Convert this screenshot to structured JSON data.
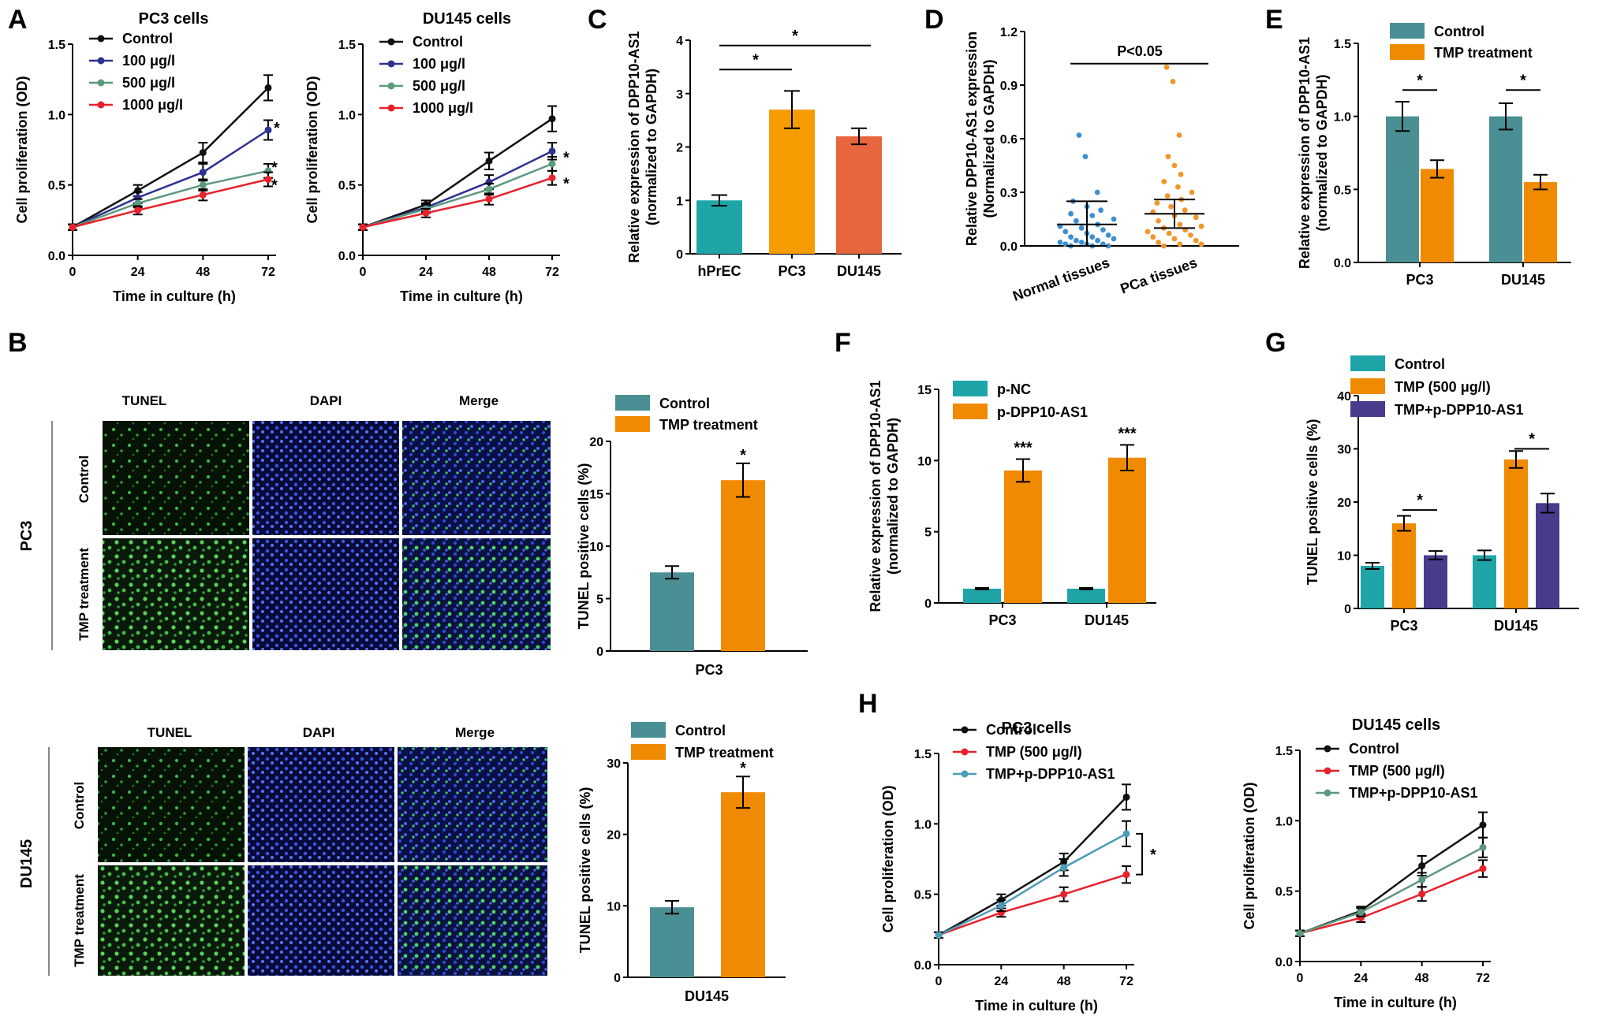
{
  "panel_letters": [
    "A",
    "B",
    "C",
    "D",
    "E",
    "F",
    "G",
    "H"
  ],
  "colors": {
    "control_line": "#111111",
    "blue_line": "#2e3192",
    "green_line": "#5b9a7e",
    "red_line": "#e8212b",
    "teal_line": "#4a9cb8",
    "teal_bar": "#4a8f93",
    "teal_bar_light": "#1fa5a8",
    "orange_bar": "#f08a00",
    "orange_c": "#f59c00",
    "red_orange_bar": "#e8663d",
    "purple_bar": "#4a3a8c",
    "scatter_blue": "#3d8fd1",
    "scatter_orange": "#f0962a",
    "micro_green": "#39b54a",
    "micro_blue": "#2a44c8"
  },
  "micrographs": {
    "columns": [
      "TUNEL",
      "DAPI",
      "Merge"
    ],
    "rows": [
      "Control",
      "TMP treatment"
    ],
    "cells": [
      "PC3",
      "DU145"
    ]
  },
  "chart_data": [
    {
      "panel": "A",
      "type": "line",
      "title": "PC3 cells",
      "xlabel": "Time in culture (h)",
      "ylabel": "Cell proliferation (OD)",
      "x": [
        0,
        24,
        48,
        72
      ],
      "xticks": [
        "0",
        "24",
        "48",
        "72"
      ],
      "ylim": [
        0,
        1.5
      ],
      "yticks": [
        "0.0",
        "0.5",
        "1.0",
        "1.5"
      ],
      "legend_position": "top-left",
      "series": [
        {
          "name": "Control",
          "color": "#111111",
          "values": [
            0.2,
            0.46,
            0.73,
            1.19
          ],
          "errors": [
            0.02,
            0.04,
            0.07,
            0.09
          ]
        },
        {
          "name": "100 μg/l",
          "color": "#2e3192",
          "values": [
            0.2,
            0.41,
            0.59,
            0.89
          ],
          "errors": [
            0.02,
            0.04,
            0.06,
            0.07
          ]
        },
        {
          "name": "500 μg/l",
          "color": "#5b9a7e",
          "values": [
            0.2,
            0.37,
            0.5,
            0.6
          ],
          "errors": [
            0.02,
            0.03,
            0.04,
            0.05
          ]
        },
        {
          "name": "1000 μg/l",
          "color": "#e8212b",
          "values": [
            0.2,
            0.32,
            0.43,
            0.54
          ],
          "errors": [
            0.02,
            0.03,
            0.04,
            0.05
          ]
        }
      ],
      "annotations": [
        "*",
        "*",
        "*"
      ]
    },
    {
      "panel": "A",
      "type": "line",
      "title": "DU145 cells",
      "xlabel": "Time in culture (h)",
      "ylabel": "Cell proliferation (OD)",
      "x": [
        0,
        24,
        48,
        72
      ],
      "xticks": [
        "0",
        "24",
        "48",
        "72"
      ],
      "ylim": [
        0,
        1.5
      ],
      "yticks": [
        "0.0",
        "0.5",
        "1.0",
        "1.5"
      ],
      "legend_position": "top-left",
      "series": [
        {
          "name": "Control",
          "color": "#111111",
          "values": [
            0.2,
            0.36,
            0.67,
            0.97
          ],
          "errors": [
            0.02,
            0.03,
            0.06,
            0.09
          ]
        },
        {
          "name": "100 μg/l",
          "color": "#2e3192",
          "values": [
            0.2,
            0.34,
            0.52,
            0.74
          ],
          "errors": [
            0.02,
            0.03,
            0.05,
            0.06
          ]
        },
        {
          "name": "500 μg/l",
          "color": "#5b9a7e",
          "values": [
            0.2,
            0.33,
            0.47,
            0.65
          ],
          "errors": [
            0.02,
            0.03,
            0.04,
            0.05
          ]
        },
        {
          "name": "1000 μg/l",
          "color": "#e8212b",
          "values": [
            0.2,
            0.3,
            0.4,
            0.55
          ],
          "errors": [
            0.02,
            0.03,
            0.04,
            0.05
          ]
        }
      ],
      "annotations": [
        "*",
        "*"
      ]
    },
    {
      "panel": "C",
      "type": "bar",
      "ylabel": "Relative expression of DPP10-AS1 (normalized to GAPDH)",
      "categories": [
        "hPrEC",
        "PC3",
        "DU145"
      ],
      "values": [
        1.0,
        2.7,
        2.2
      ],
      "errors": [
        0.1,
        0.35,
        0.15
      ],
      "colors": [
        "#1fa5a8",
        "#f59c00",
        "#e8663d"
      ],
      "ylim": [
        0,
        4
      ],
      "yticks": [
        "0",
        "1",
        "2",
        "3",
        "4"
      ],
      "annotations": [
        "*",
        "*"
      ]
    },
    {
      "panel": "D",
      "type": "scatter",
      "ylabel": "Relative DPP10-AS1 expression (Normalized to GAPDH)",
      "categories": [
        "Normal tissues",
        "PCa tissues"
      ],
      "ylim": [
        0,
        1.2
      ],
      "yticks": [
        "0.0",
        "0.3",
        "0.6",
        "0.9",
        "1.2"
      ],
      "annotation": "P<0.05",
      "groups": [
        {
          "name": "Normal tissues",
          "color": "#3d8fd1",
          "mean": 0.12,
          "sd": 0.13,
          "points": [
            0.62,
            0.5,
            0.3,
            0.25,
            0.22,
            0.2,
            0.18,
            0.17,
            0.15,
            0.14,
            0.12,
            0.11,
            0.1,
            0.09,
            0.08,
            0.07,
            0.06,
            0.05,
            0.05,
            0.04,
            0.03,
            0.03,
            0.02,
            0.02,
            0.01,
            0.01,
            0.01,
            0.0,
            0.0,
            0.0
          ]
        },
        {
          "name": "PCa tissues",
          "color": "#f0962a",
          "mean": 0.18,
          "sd": 0.08,
          "points": [
            1.0,
            0.92,
            0.62,
            0.5,
            0.45,
            0.4,
            0.36,
            0.33,
            0.3,
            0.28,
            0.26,
            0.24,
            0.22,
            0.2,
            0.19,
            0.17,
            0.16,
            0.14,
            0.12,
            0.11,
            0.1,
            0.09,
            0.08,
            0.07,
            0.06,
            0.05,
            0.04,
            0.03,
            0.02,
            0.01,
            0.01,
            0.0
          ]
        }
      ]
    },
    {
      "panel": "E",
      "type": "bar",
      "ylabel": "Relative expression of DPP10-AS1 (normalized to GAPDH)",
      "categories": [
        "PC3",
        "DU145"
      ],
      "ylim": [
        0,
        1.5
      ],
      "yticks": [
        "0.0",
        "0.5",
        "1.0",
        "1.5"
      ],
      "legend_position": "top",
      "series": [
        {
          "name": "Control",
          "color": "#4a8f93",
          "values": [
            1.0,
            1.0
          ],
          "errors": [
            0.1,
            0.09
          ]
        },
        {
          "name": "TMP treatment",
          "color": "#f08a00",
          "values": [
            0.64,
            0.55
          ],
          "errors": [
            0.06,
            0.05
          ]
        }
      ],
      "annotations": [
        "*",
        "*"
      ]
    },
    {
      "panel": "B",
      "type": "bar",
      "ylabel": "TUNEL positive cells (%)",
      "xlabel": "PC3",
      "ylim": [
        0,
        20
      ],
      "yticks": [
        "0",
        "5",
        "10",
        "15",
        "20"
      ],
      "legend_position": "top",
      "series": [
        {
          "name": "Control",
          "color": "#4a8f93",
          "values": [
            7.5
          ],
          "errors": [
            0.6
          ]
        },
        {
          "name": "TMP treatment",
          "color": "#f08a00",
          "values": [
            16.3
          ],
          "errors": [
            1.6
          ]
        }
      ],
      "annotations": [
        "*"
      ]
    },
    {
      "panel": "B",
      "type": "bar",
      "ylabel": "TUNEL positive cells (%)",
      "xlabel": "DU145",
      "ylim": [
        0,
        30
      ],
      "yticks": [
        "0",
        "10",
        "20",
        "30"
      ],
      "legend_position": "top",
      "series": [
        {
          "name": "Control",
          "color": "#4a8f93",
          "values": [
            9.8
          ],
          "errors": [
            0.9
          ]
        },
        {
          "name": "TMP treatment",
          "color": "#f08a00",
          "values": [
            25.9
          ],
          "errors": [
            2.2
          ]
        }
      ],
      "annotations": [
        "*"
      ]
    },
    {
      "panel": "F",
      "type": "bar",
      "ylabel": "Relative expression of DPP10-AS1 (normalized to GAPDH)",
      "categories": [
        "PC3",
        "DU145"
      ],
      "ylim": [
        0,
        15
      ],
      "yticks": [
        "0",
        "5",
        "10",
        "15"
      ],
      "legend_position": "top-left",
      "series": [
        {
          "name": "p-NC",
          "color": "#1fa5a8",
          "values": [
            1.0,
            1.0
          ],
          "errors": [
            0.05,
            0.05
          ]
        },
        {
          "name": "p-DPP10-AS1",
          "color": "#f08a00",
          "values": [
            9.3,
            10.2
          ],
          "errors": [
            0.8,
            0.9
          ]
        }
      ],
      "annotations": [
        "***",
        "***"
      ]
    },
    {
      "panel": "G",
      "type": "bar",
      "ylabel": "TUNEL positive cells (%)",
      "categories": [
        "PC3",
        "DU145"
      ],
      "ylim": [
        0,
        40
      ],
      "yticks": [
        "0",
        "10",
        "20",
        "30",
        "40"
      ],
      "legend_position": "top",
      "series": [
        {
          "name": "Control",
          "color": "#1fa5a8",
          "values": [
            8.0,
            10.0
          ],
          "errors": [
            0.6,
            0.9
          ]
        },
        {
          "name": "TMP (500 μg/l)",
          "color": "#f08a00",
          "values": [
            16.0,
            28.0
          ],
          "errors": [
            1.4,
            1.6
          ]
        },
        {
          "name": "TMP+p-DPP10-AS1",
          "color": "#4a3a8c",
          "values": [
            10.0,
            19.8
          ],
          "errors": [
            0.8,
            1.8
          ]
        }
      ],
      "annotations": [
        "*",
        "*"
      ]
    },
    {
      "panel": "H",
      "type": "line",
      "title": "PC3 cells",
      "xlabel": "Time in culture (h)",
      "ylabel": "Cell proliferation (OD)",
      "x": [
        0,
        24,
        48,
        72
      ],
      "xticks": [
        "0",
        "24",
        "48",
        "72"
      ],
      "ylim": [
        0,
        1.5
      ],
      "yticks": [
        "0.0",
        "0.5",
        "1.0",
        "1.5"
      ],
      "legend_position": "top-left",
      "series": [
        {
          "name": "Control",
          "color": "#111111",
          "values": [
            0.21,
            0.46,
            0.73,
            1.19
          ],
          "errors": [
            0.02,
            0.04,
            0.06,
            0.09
          ]
        },
        {
          "name": "TMP (500 μg/l)",
          "color": "#e8212b",
          "values": [
            0.21,
            0.37,
            0.5,
            0.64
          ],
          "errors": [
            0.02,
            0.03,
            0.05,
            0.06
          ]
        },
        {
          "name": "TMP+p-DPP10-AS1",
          "color": "#4a9cb8",
          "values": [
            0.21,
            0.42,
            0.69,
            0.93
          ],
          "errors": [
            0.02,
            0.04,
            0.06,
            0.09
          ]
        }
      ],
      "annotations": [
        "*"
      ]
    },
    {
      "panel": "H",
      "type": "line",
      "title": "DU145 cells",
      "xlabel": "Time in culture (h)",
      "ylabel": "Cell proliferation (OD)",
      "x": [
        0,
        24,
        48,
        72
      ],
      "xticks": [
        "0",
        "24",
        "48",
        "72"
      ],
      "ylim": [
        0,
        1.5
      ],
      "yticks": [
        "0.0",
        "0.5",
        "1.0",
        "1.5"
      ],
      "legend_position": "top-left",
      "series": [
        {
          "name": "Control",
          "color": "#111111",
          "values": [
            0.2,
            0.36,
            0.68,
            0.97
          ],
          "errors": [
            0.02,
            0.03,
            0.07,
            0.09
          ]
        },
        {
          "name": "TMP (500 μg/l)",
          "color": "#e8212b",
          "values": [
            0.2,
            0.31,
            0.48,
            0.66
          ],
          "errors": [
            0.02,
            0.03,
            0.05,
            0.06
          ]
        },
        {
          "name": "TMP+p-DPP10-AS1",
          "color": "#5b9a7e",
          "values": [
            0.2,
            0.35,
            0.58,
            0.81
          ],
          "errors": [
            0.02,
            0.03,
            0.05,
            0.07
          ]
        }
      ],
      "annotations": []
    }
  ]
}
